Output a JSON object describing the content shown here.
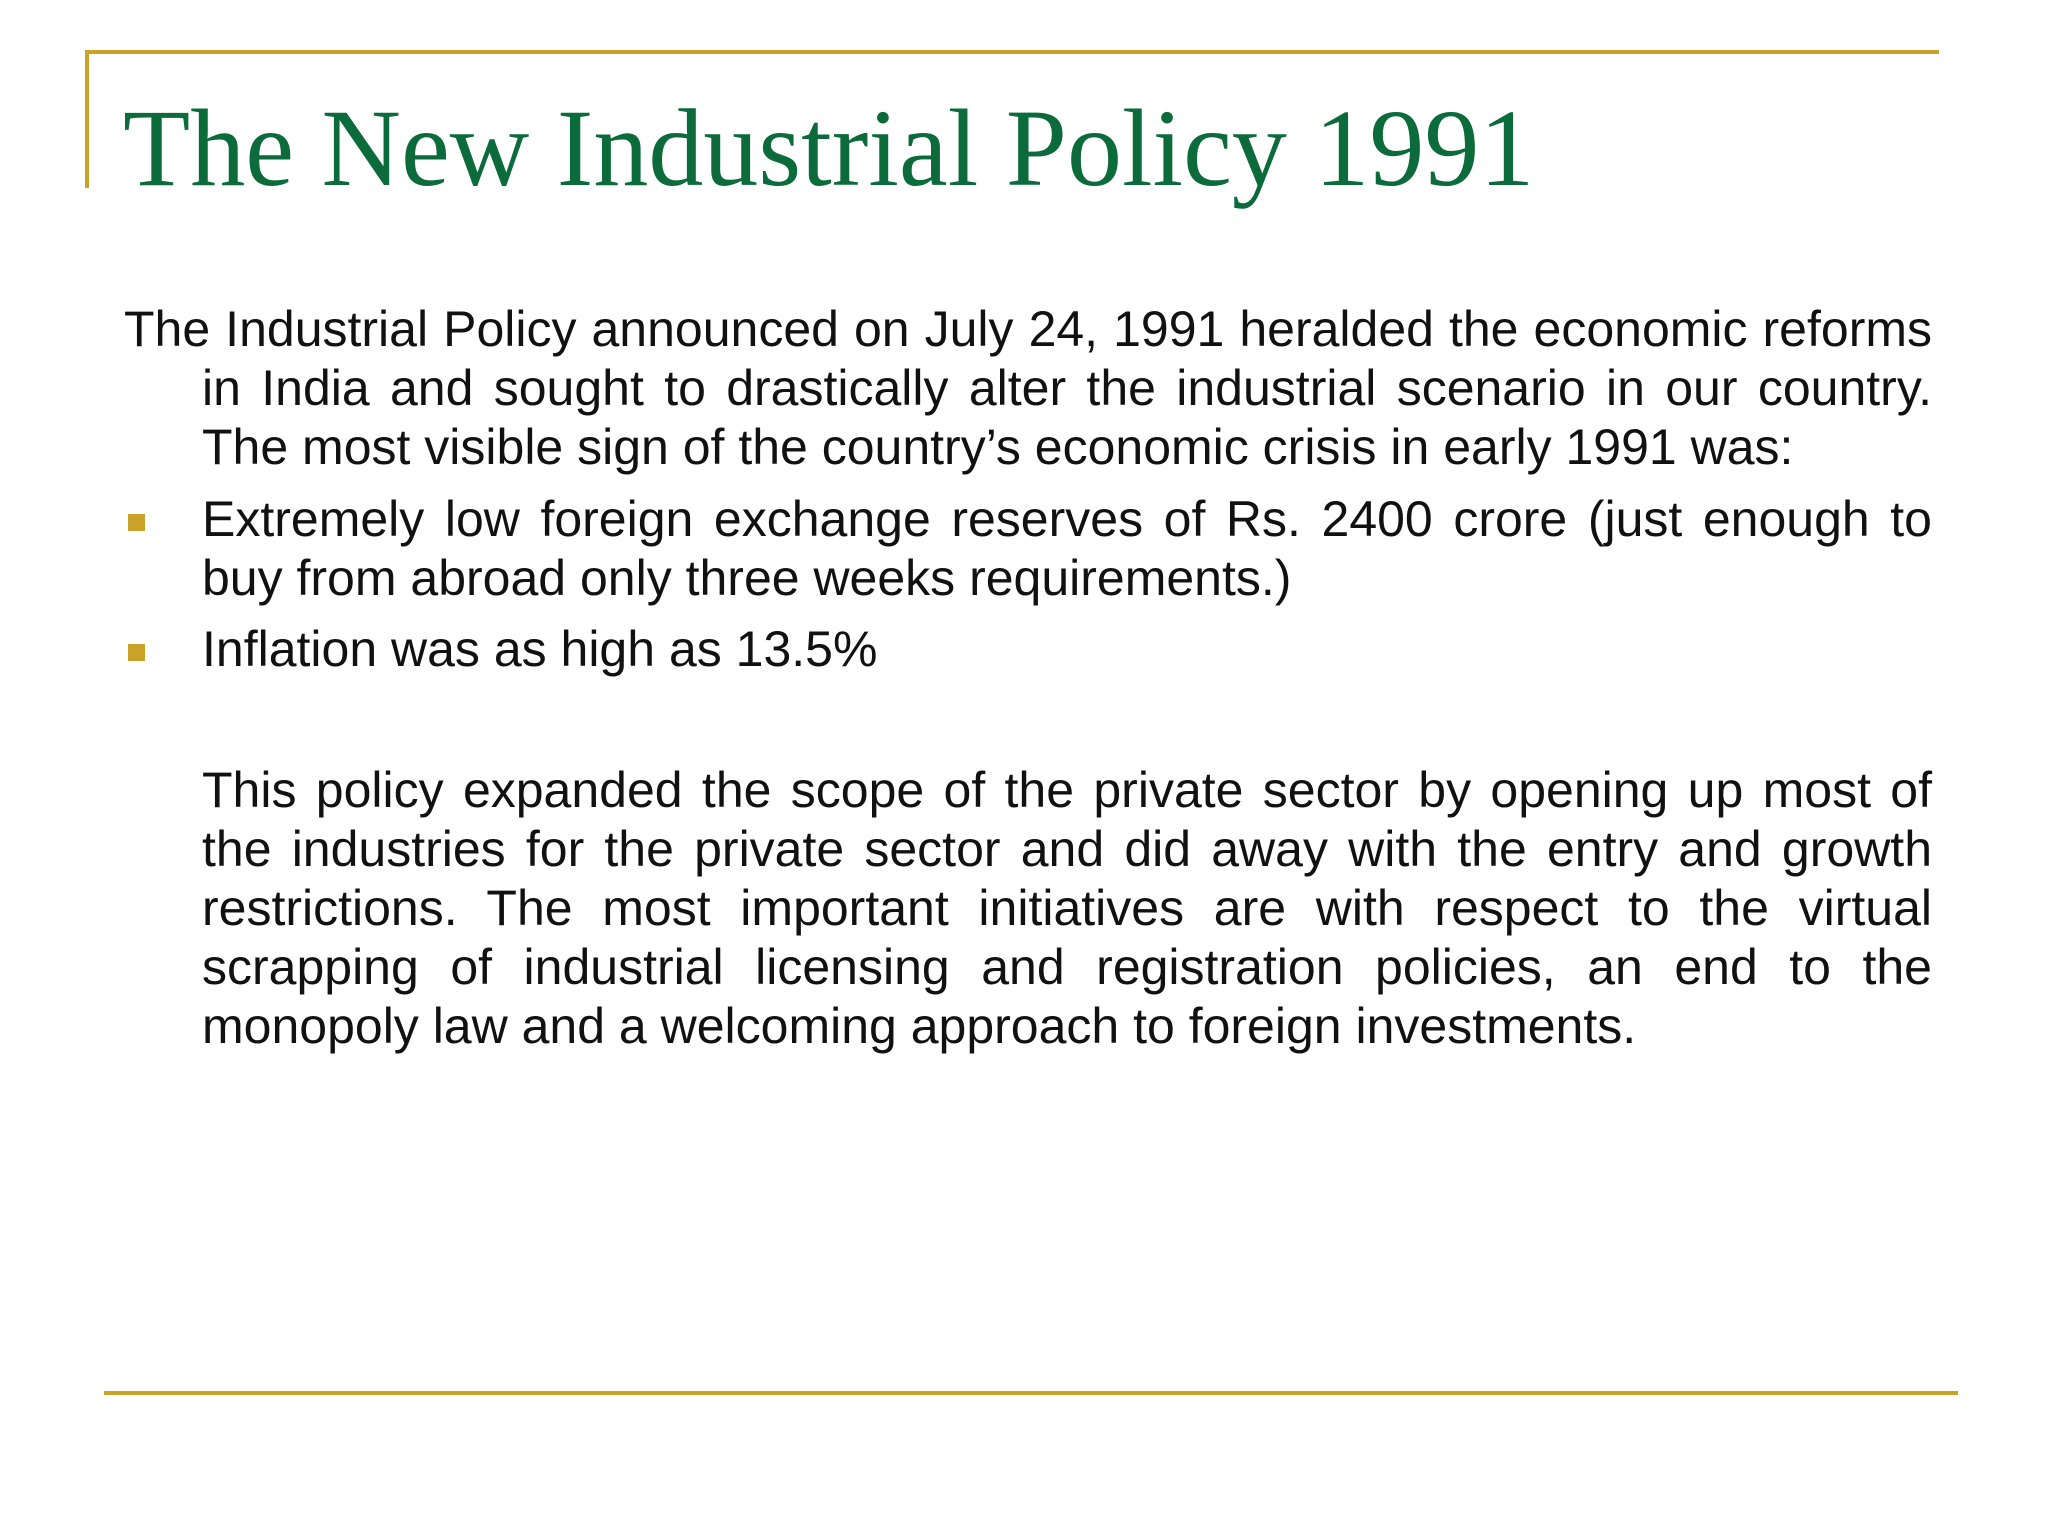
{
  "colors": {
    "accent": "#C9A227",
    "title": "#0B6B3A",
    "text": "#111111"
  },
  "slide": {
    "title": "The New Industrial Policy 1991",
    "intro": "The Industrial Policy announced on July 24, 1991 heralded the economic reforms in India and sought to drastically alter the industrial scenario in our country. The most visible sign of the country’s economic crisis in early 1991 was:",
    "bullets": [
      "Extremely low foreign exchange reserves of Rs. 2400 crore (just enough to buy from abroad only three weeks requirements.)",
      "Inflation was as high as 13.5%"
    ],
    "closing": "This policy expanded the scope of the private sector by opening up most of the industries for the private sector and did away with the entry and growth restrictions. The most important initiatives are with respect to the virtual scrapping of industrial licensing and registration policies, an end to the monopoly law and a welcoming approach to foreign investments."
  }
}
